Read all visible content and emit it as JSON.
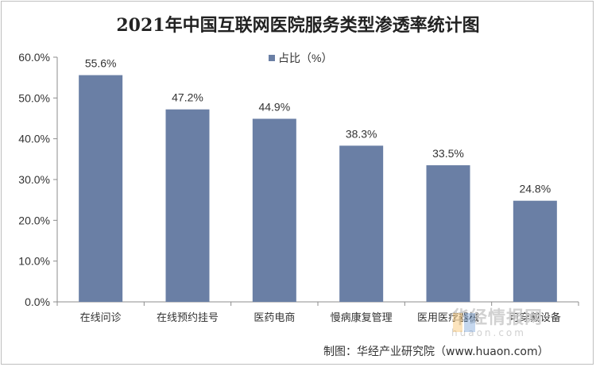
{
  "chart_data": {
    "type": "bar",
    "title": "2021年中国互联网医院服务类型渗透率统计图",
    "categories": [
      "在线问诊",
      "在线预约挂号",
      "医药电商",
      "慢病康复管理",
      "医用医疗器械",
      "可穿戴设备"
    ],
    "series": [
      {
        "name": "占比（%）",
        "values": [
          55.6,
          47.2,
          44.9,
          38.3,
          33.5,
          24.8
        ]
      }
    ],
    "data_labels": [
      "55.6%",
      "47.2%",
      "44.9%",
      "38.3%",
      "33.5%",
      "24.8%"
    ],
    "ylim": [
      0,
      60
    ],
    "yticks": [
      0,
      10,
      20,
      30,
      40,
      50,
      60
    ],
    "ytick_labels": [
      "0.0%",
      "10.0%",
      "20.0%",
      "30.0%",
      "40.0%",
      "50.0%",
      "60.0%"
    ],
    "xlabel": "",
    "ylabel": "",
    "legend_position": "top-center",
    "grid": false,
    "bar_color": "#6a7fa5"
  },
  "source": "制图：华经产业研究院（www.huaon.com）",
  "watermark": {
    "title": "华经情报网",
    "url": "huaon.com"
  },
  "colors": {
    "bar": "#6a7fa5",
    "axis": "#8c8c8c",
    "logo_orange": "#f5a623",
    "logo_blue": "#3d7cc9"
  }
}
